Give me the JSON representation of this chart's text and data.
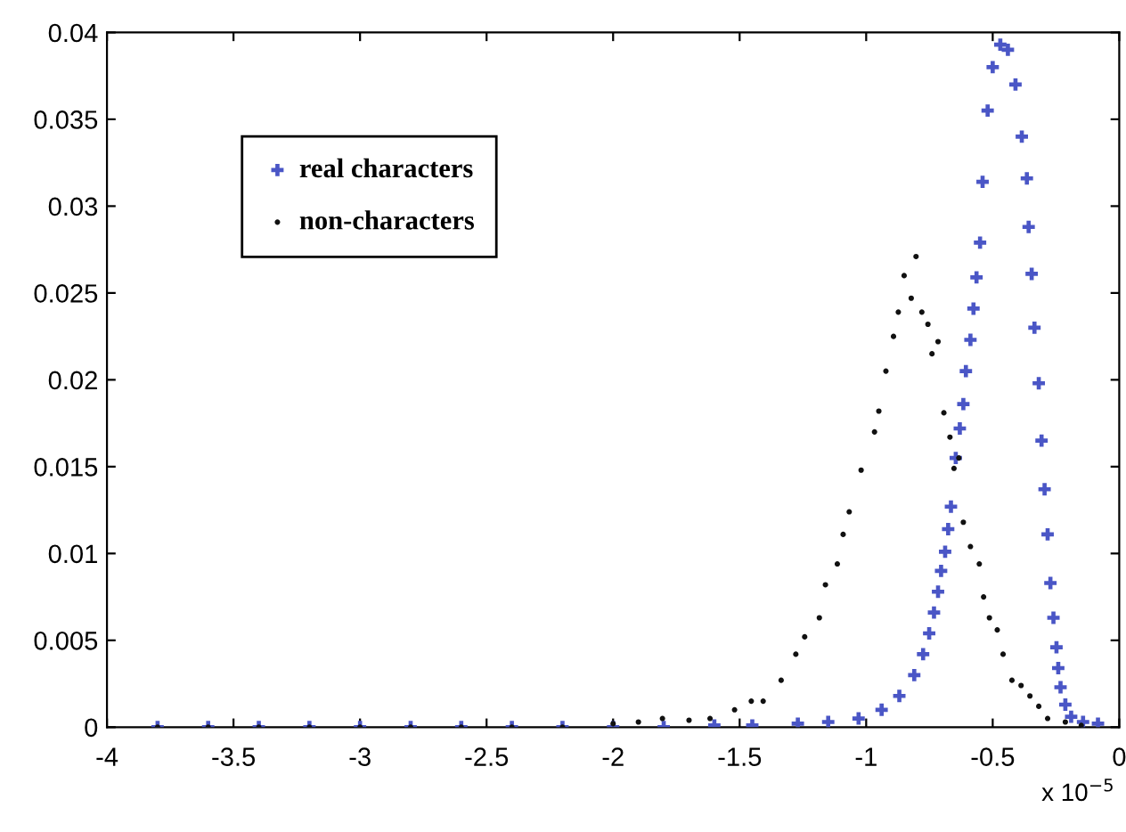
{
  "chart_data": {
    "type": "scatter",
    "xlim": [
      -4,
      0
    ],
    "xticks": [
      -4,
      -3.5,
      -3,
      -2.5,
      -2,
      -1.5,
      -1,
      -0.5,
      0
    ],
    "ylim": [
      0,
      0.04
    ],
    "yticks": [
      0,
      0.005,
      0.01,
      0.015,
      0.02,
      0.025,
      0.03,
      0.035,
      0.04
    ],
    "annotations": [
      "x 10$^{−5}$"
    ],
    "legend": "top left",
    "grid": false,
    "series": [
      {
        "name": "real characters",
        "color": "#4a56c6",
        "marker": "cross",
        "x": [
          -3.8,
          -3.6,
          -3.4,
          -3.2,
          -3.0,
          -2.8,
          -2.6,
          -2.4,
          -2.2,
          -2.0,
          -1.8,
          -1.6,
          -1.45,
          -1.27,
          -1.15,
          -1.03,
          -0.939,
          -0.869,
          -0.81,
          -0.775,
          -0.751,
          -0.732,
          -0.716,
          -0.704,
          -0.688,
          -0.676,
          -0.665,
          -0.646,
          -0.63,
          -0.616,
          -0.606,
          -0.588,
          -0.576,
          -0.564,
          -0.55,
          -0.54,
          -0.52,
          -0.5,
          -0.47,
          -0.44,
          -0.41,
          -0.385,
          -0.365,
          -0.358,
          -0.346,
          -0.335,
          -0.318,
          -0.307,
          -0.295,
          -0.283,
          -0.272,
          -0.26,
          -0.248,
          -0.241,
          -0.232,
          -0.213,
          -0.19,
          -0.143,
          -0.084
        ],
        "values": [
          0,
          0,
          0,
          0,
          0,
          0,
          0,
          0,
          0,
          0,
          0,
          0.0001,
          0.0001,
          0.0002,
          0.0003,
          0.0005,
          0.001,
          0.0018,
          0.003,
          0.0042,
          0.0054,
          0.0066,
          0.0078,
          0.009,
          0.0101,
          0.0114,
          0.0127,
          0.0155,
          0.0172,
          0.0186,
          0.0205,
          0.0223,
          0.0241,
          0.0259,
          0.0279,
          0.0314,
          0.0355,
          0.038,
          0.0393,
          0.039,
          0.037,
          0.034,
          0.0316,
          0.0288,
          0.0261,
          0.023,
          0.0198,
          0.0165,
          0.0137,
          0.0111,
          0.0083,
          0.0063,
          0.0046,
          0.0034,
          0.0023,
          0.0013,
          0.0006,
          0.0003,
          0.0002
        ]
      },
      {
        "name": "non-characters",
        "color": "#111111",
        "marker": "circle",
        "x": [
          -3.8,
          -3.6,
          -3.4,
          -3.2,
          -3.0,
          -2.8,
          -2.6,
          -2.4,
          -2.2,
          -2.0,
          -1.9,
          -1.805,
          -1.7,
          -1.617,
          -1.52,
          -1.454,
          -1.407,
          -1.336,
          -1.278,
          -1.243,
          -1.185,
          -1.161,
          -1.114,
          -1.091,
          -1.067,
          -1.02,
          -0.967,
          -0.95,
          -0.922,
          -0.892,
          -0.873,
          -0.85,
          -0.822,
          -0.803,
          -0.78,
          -0.756,
          -0.74,
          -0.716,
          -0.693,
          -0.669,
          -0.653,
          -0.634,
          -0.616,
          -0.588,
          -0.553,
          -0.536,
          -0.513,
          -0.482,
          -0.459,
          -0.424,
          -0.388,
          -0.353,
          -0.318,
          -0.283,
          -0.213,
          -0.15
        ],
        "values": [
          0,
          0,
          0,
          0,
          0,
          0,
          0,
          0,
          0,
          0.0002,
          0.0003,
          0.0005,
          0.0004,
          0.0005,
          0.001,
          0.0015,
          0.0015,
          0.0027,
          0.0042,
          0.0052,
          0.0063,
          0.0082,
          0.0094,
          0.0111,
          0.0124,
          0.0148,
          0.017,
          0.0182,
          0.0205,
          0.0225,
          0.0239,
          0.026,
          0.0247,
          0.0271,
          0.0239,
          0.0232,
          0.0215,
          0.0222,
          0.0181,
          0.0167,
          0.0149,
          0.0155,
          0.0118,
          0.0104,
          0.0094,
          0.0075,
          0.0063,
          0.0056,
          0.0042,
          0.0027,
          0.0024,
          0.0018,
          0.0012,
          0.0005,
          0.0003,
          0.0001
        ]
      }
    ]
  }
}
